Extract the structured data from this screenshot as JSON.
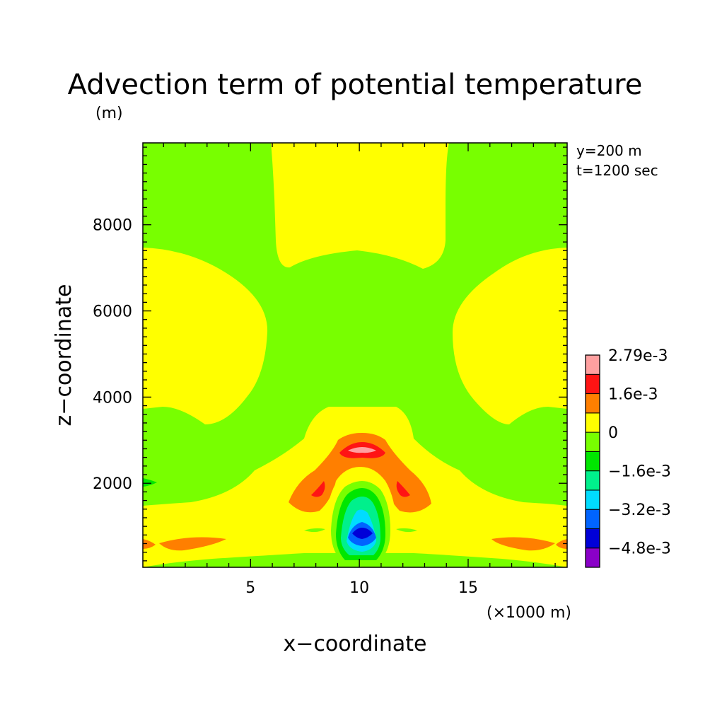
{
  "chart_data": {
    "type": "heatmap",
    "title": "Advection term of potential temperature",
    "y_unit_label": "(m)",
    "x_unit_label": "(×1000 m)",
    "xlabel": "x−coordinate",
    "ylabel": "z−coordinate",
    "xlim": [
      0.05,
      19.55
    ],
    "ylim": [
      50,
      9900
    ],
    "x_ticks": [
      5,
      10,
      15
    ],
    "x_tick_labels": [
      "5",
      "10",
      "15"
    ],
    "y_ticks": [
      2000,
      4000,
      6000,
      8000
    ],
    "y_tick_labels": [
      "2000",
      "4000",
      "6000",
      "8000"
    ],
    "annotations": [
      "y=200 m",
      "t=1200 sec"
    ],
    "colorbar": {
      "levels": [
        -0.0048,
        -0.004,
        -0.0032,
        -0.0024,
        -0.0016,
        -0.0008,
        0,
        0.0008,
        0.0016,
        0.0024,
        0.00279
      ],
      "labels": [
        "2.79e-3",
        "1.6e-3",
        "0",
        "−1.6e-3",
        "−3.2e-3",
        "−4.8e-3"
      ],
      "colors": [
        "#8a00c8",
        "#0000d8",
        "#0064ff",
        "#00dcff",
        "#00f08c",
        "#00e600",
        "#78ff00",
        "#ffff00",
        "#ff7f00",
        "#ff1414",
        "#ffa0a0"
      ]
    },
    "regions": [
      {
        "level": "0 to 8e-4",
        "description": "top-center column",
        "x": [
          6.2,
          14.0
        ],
        "z": [
          7000,
          9900
        ]
      },
      {
        "level": "0 to 8e-4",
        "description": "left and right mid bulges",
        "z": [
          3400,
          7500
        ]
      },
      {
        "level": "8e-4 to 1.6e-3",
        "x_center": 10.1,
        "z_center": 2700
      },
      {
        "level": "1.6e-3 to 2.4e-3",
        "x_center": 10.1,
        "z_center": 2750
      },
      {
        "level": "2.4e-3 to 2.79e-3",
        "x_center": 10.1,
        "z_center": 2780
      },
      {
        "level": "-4.8e-3 to -4.0e-3",
        "x_center": 10.1,
        "z_center": 800
      }
    ]
  }
}
